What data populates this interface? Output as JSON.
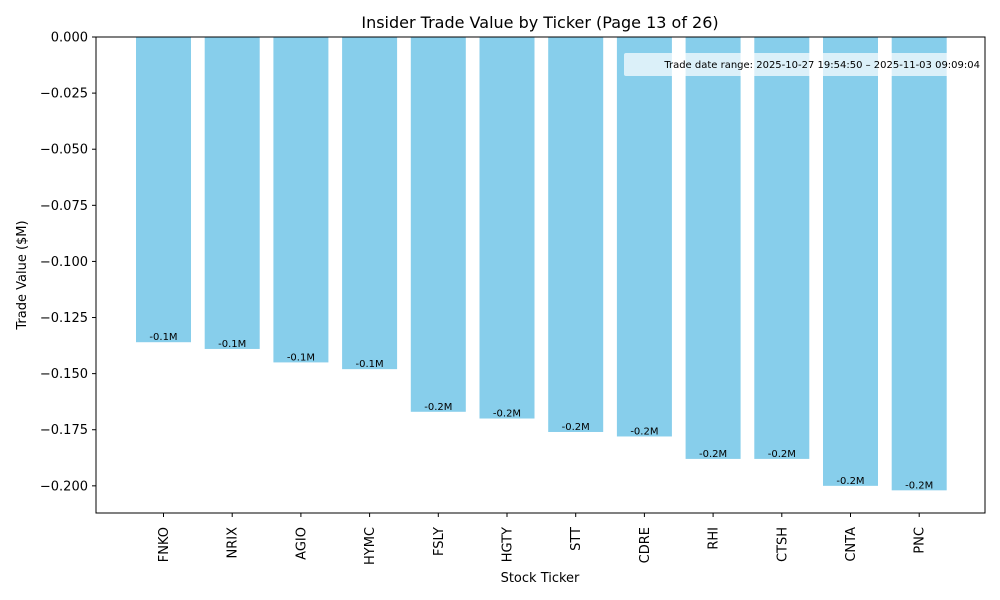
{
  "chart_data": {
    "type": "bar",
    "title": "Insider Trade Value by Ticker (Page 13 of 26)",
    "xlabel": "Stock Ticker",
    "ylabel": "Trade Value ($M)",
    "categories": [
      "FNKO",
      "NRIX",
      "AGIO",
      "HYMC",
      "FSLY",
      "HGTY",
      "STT",
      "CDRE",
      "RHI",
      "CTSH",
      "CNTA",
      "PNC"
    ],
    "values": [
      -0.136,
      -0.139,
      -0.145,
      -0.148,
      -0.167,
      -0.17,
      -0.176,
      -0.178,
      -0.188,
      -0.188,
      -0.2,
      -0.202
    ],
    "data_labels": [
      "-0.1M",
      "-0.1M",
      "-0.1M",
      "-0.1M",
      "-0.2M",
      "-0.2M",
      "-0.2M",
      "-0.2M",
      "-0.2M",
      "-0.2M",
      "-0.2M",
      "-0.2M"
    ],
    "ylim": [
      -0.2121,
      0.0
    ],
    "yticks": [
      0.0,
      -0.025,
      -0.05,
      -0.075,
      -0.1,
      -0.125,
      -0.15,
      -0.175,
      -0.2
    ],
    "ytick_labels": [
      "0.000",
      "−0.025",
      "−0.050",
      "−0.075",
      "−0.100",
      "−0.125",
      "−0.150",
      "−0.175",
      "−0.200"
    ],
    "bar_color": "#87CEEB",
    "grid": false,
    "legend": "none",
    "annotation": {
      "text": "Trade date range: 2025-10-27 19:54:50 – 2025-11-03 09:09:04",
      "placement": "top-right"
    }
  }
}
